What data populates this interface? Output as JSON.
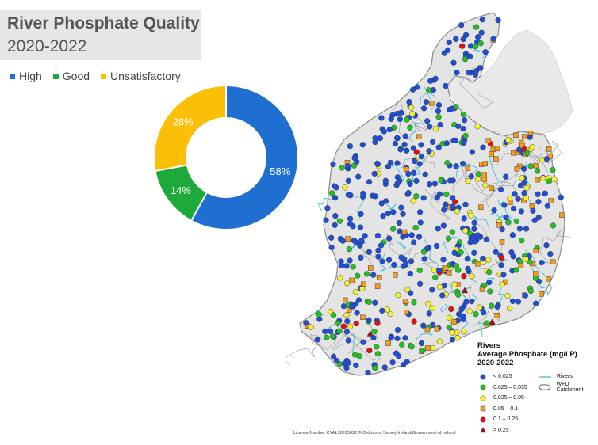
{
  "title": "River Phosphate Quality",
  "subtitle": "2020-2022",
  "legend": [
    {
      "label": "High",
      "color": "#1f6fd0"
    },
    {
      "label": "Good",
      "color": "#1eaa3a"
    },
    {
      "label": "Unsatisfactory",
      "color": "#fbbf07"
    }
  ],
  "chart_data": {
    "type": "pie",
    "categories": [
      "High",
      "Good",
      "Unsatisfactory"
    ],
    "values": [
      58,
      14,
      28
    ],
    "labels": [
      "58%",
      "14%",
      "28%"
    ],
    "colors": [
      "#1f6fd0",
      "#1eaa3a",
      "#fbbf07"
    ],
    "donut": true
  },
  "map_legend": {
    "title_line1": "Rivers",
    "title_line2": "Average Phosphate (mg/l P)",
    "title_line3": "2020-2022",
    "classes": [
      {
        "label": "< 0.025",
        "symbol": "circle",
        "color": "#1f4fd6"
      },
      {
        "label": "0.025 – 0.035",
        "symbol": "circle",
        "color": "#22c022"
      },
      {
        "label": "0.035 – 0.05",
        "symbol": "circle",
        "color": "#f5f032"
      },
      {
        "label": "0.05 – 0.1",
        "symbol": "square",
        "color": "#f59a1e"
      },
      {
        "label": "0.1 – 0.25",
        "symbol": "circle",
        "color": "#e01010"
      },
      {
        "label": "> 0.25",
        "symbol": "triangle",
        "color": "#a01010"
      }
    ],
    "rivers_label": "Rivers",
    "catchment_label": "WFD Catchment"
  },
  "licence": "Licence Number CYAL50265032 © Ordnance Survey Ireland/Government of Ireland"
}
